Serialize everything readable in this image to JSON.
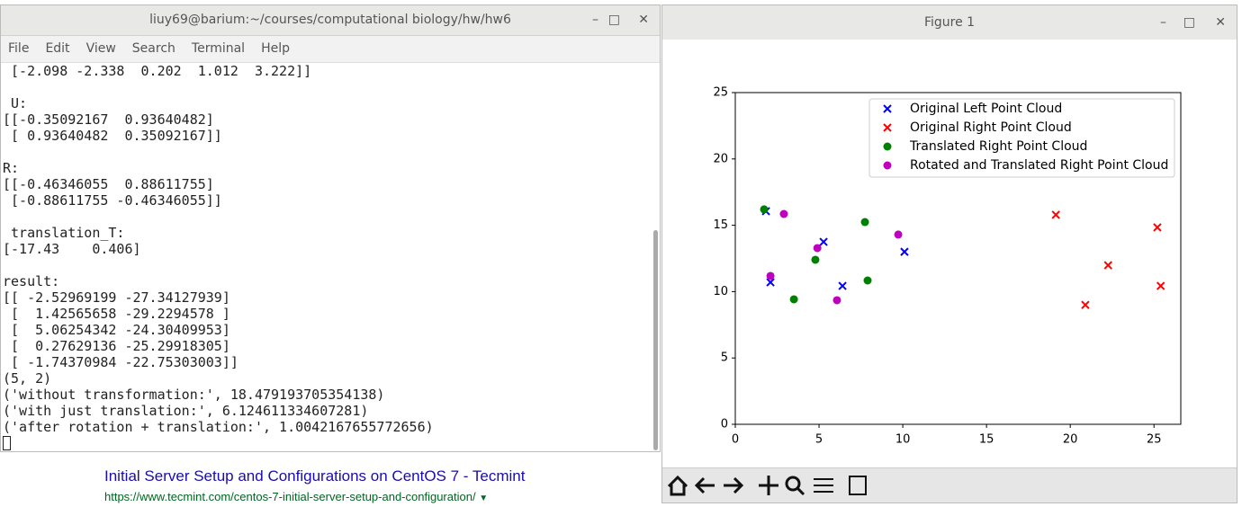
{
  "terminal": {
    "title": "liuy69@barium:~/courses/computational biology/hw/hw6",
    "menu": [
      "File",
      "Edit",
      "View",
      "Search",
      "Terminal",
      "Help"
    ],
    "blocks": [
      [
        " [-2.098 -2.338  0.202  1.012  3.222]]"
      ],
      [
        " U:",
        "[[-0.35092167  0.93640482]",
        " [ 0.93640482  0.35092167]]"
      ],
      [
        "R:",
        "[[-0.46346055  0.88611755]",
        " [-0.88611755 -0.46346055]]"
      ],
      [
        " translation_T:",
        "[-17.43    0.406]"
      ],
      [
        "result:",
        "[[ -2.52969199 -27.34127939]",
        " [  1.42565658 -29.2294578 ]",
        " [  5.06254342 -24.30409953]",
        " [  0.27629136 -25.29918305]",
        " [ -1.74370984 -22.75303003]]",
        "(5, 2)",
        "('without transformation:', 18.479193705354138)",
        "('with just translation:', 6.124611334607281)",
        "('after rotation + translation:', 1.0042167655772656)"
      ]
    ]
  },
  "browser": {
    "result_title": "Initial Server Setup and Configurations on CentOS 7 - Tecmint",
    "result_url": "https://www.tecmint.com/centos-7-initial-server-setup-and-configuration/"
  },
  "figure_window": {
    "title": "Figure 1"
  },
  "chart_data": {
    "type": "scatter",
    "xlim": [
      0,
      26.6
    ],
    "ylim": [
      0,
      25
    ],
    "xticks": [
      0,
      5,
      10,
      15,
      20,
      25
    ],
    "yticks": [
      0,
      5,
      10,
      15,
      20,
      25
    ],
    "legend": "upper right",
    "series": [
      {
        "name": "Original Left Point Cloud",
        "color": "#0000ff",
        "marker": "x",
        "x": [
          1.83,
          2.1,
          5.27,
          6.4,
          10.1
        ],
        "y": [
          16.06,
          10.7,
          13.75,
          10.43,
          13.0
        ]
      },
      {
        "name": "Original Right Point Cloud",
        "color": "#ff0000",
        "marker": "x",
        "x": [
          19.14,
          20.9,
          22.26,
          25.2,
          25.4
        ],
        "y": [
          15.79,
          9.0,
          11.99,
          14.84,
          10.43
        ]
      },
      {
        "name": "Translated Right Point Cloud",
        "color": "#008000",
        "marker": "o",
        "x": [
          1.72,
          4.78,
          3.5,
          7.74,
          7.9
        ],
        "y": [
          16.2,
          12.4,
          9.42,
          15.24,
          10.84
        ]
      },
      {
        "name": "Rotated and Translated Right Point Cloud",
        "color": "#bf00bf",
        "marker": "o",
        "x": [
          2.9,
          2.1,
          4.9,
          6.07,
          9.73
        ],
        "y": [
          15.85,
          11.18,
          13.28,
          9.35,
          14.3
        ]
      }
    ]
  }
}
